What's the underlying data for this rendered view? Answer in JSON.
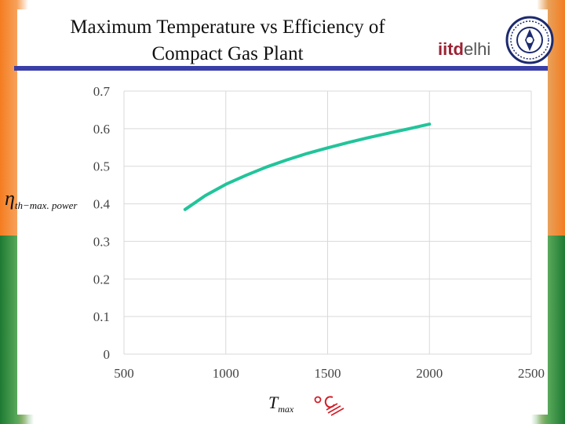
{
  "header": {
    "title_line1": "Maximum Temperature vs Efficiency of",
    "title_line2": "Compact Gas Plant",
    "logo_part1": "iitd",
    "logo_part2": "elhi",
    "colors": {
      "rule": "#3a3fa8",
      "logo_red": "#9b2335",
      "emblem": "#1c2a6e"
    }
  },
  "chart_data": {
    "type": "line",
    "title": "Maximum Temperature vs Efficiency of Compact Gas Plant",
    "xlabel_symbol": "T",
    "xlabel_sub": "max",
    "ylabel_symbol": "η",
    "ylabel_sub": "th−max. power",
    "unit_note": "°C",
    "xlim": [
      500,
      2500
    ],
    "ylim": [
      0,
      0.7
    ],
    "x_ticks": [
      "500",
      "1000",
      "1500",
      "2000",
      "2500"
    ],
    "y_ticks": [
      "0",
      "0.1",
      "0.2",
      "0.3",
      "0.4",
      "0.5",
      "0.6",
      "0.7"
    ],
    "grid": true,
    "line_color": "#22c49a",
    "series": [
      {
        "x": [
          800,
          900,
          1000,
          1100,
          1200,
          1300,
          1400,
          1500,
          1600,
          1700,
          1800,
          1900,
          2000
        ],
        "values": [
          0.385,
          0.422,
          0.452,
          0.476,
          0.498,
          0.517,
          0.534,
          0.549,
          0.563,
          0.576,
          0.588,
          0.6,
          0.612
        ]
      }
    ]
  }
}
